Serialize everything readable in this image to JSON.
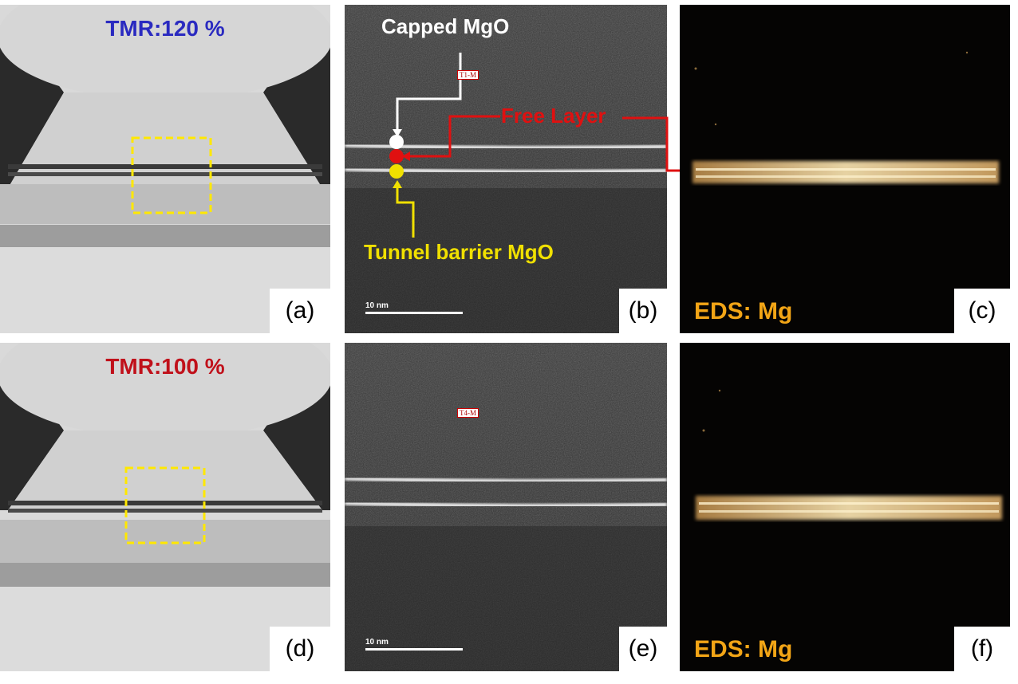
{
  "panels": {
    "a": {
      "letter": "(a)",
      "tmr": "TMR:120 %",
      "tmr_color": "#2a2ac0"
    },
    "b": {
      "letter": "(b)",
      "sample_tag": "T1-M",
      "scale": "10 nm",
      "labels": {
        "capped": "Capped MgO",
        "free": "Free Layer",
        "tunnel": "Tunnel barrier MgO"
      }
    },
    "c": {
      "letter": "(c)",
      "eds": "EDS: Mg"
    },
    "d": {
      "letter": "(d)",
      "tmr": "TMR:100 %",
      "tmr_color": "#c0101a"
    },
    "e": {
      "letter": "(e)",
      "sample_tag": "T4-M",
      "scale": "10 nm"
    },
    "f": {
      "letter": "(f)",
      "eds": "EDS: Mg"
    }
  },
  "colors": {
    "capped": "#ffffff",
    "free": "#e01010",
    "tunnel": "#f0e000",
    "eds": "#f2a516",
    "roi": "#ffe800"
  }
}
